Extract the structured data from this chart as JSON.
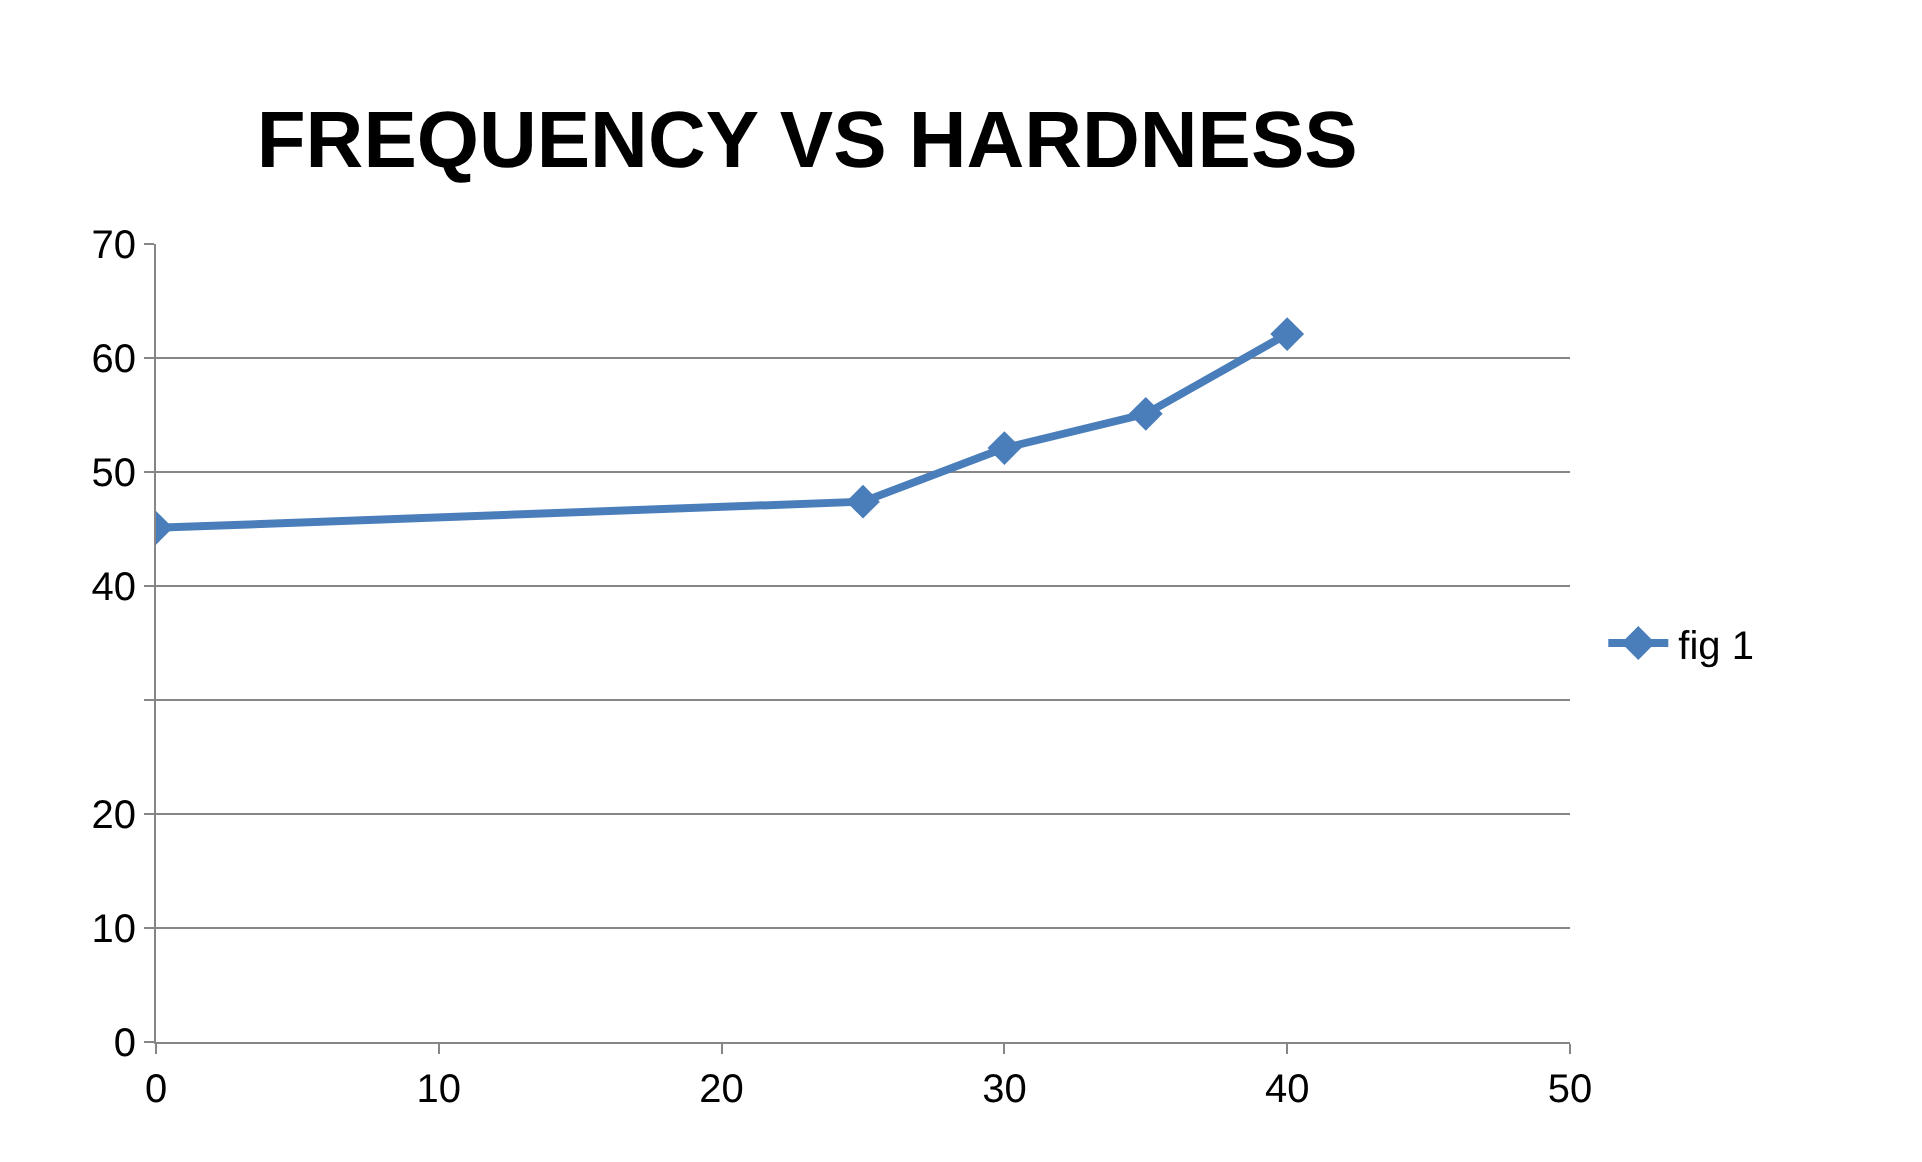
{
  "chart_data": {
    "type": "line",
    "title": "FREQUENCY VS HARDNESS",
    "x": [
      0,
      25,
      30,
      35,
      40
    ],
    "series": [
      {
        "name": "fig 1",
        "color": "#4a7ebb",
        "values": [
          45.1,
          47.4,
          52.1,
          55.1,
          62.1
        ]
      }
    ],
    "xlim": [
      0,
      50
    ],
    "xticks": [
      0,
      10,
      20,
      30,
      40,
      50
    ],
    "ylim": [
      0,
      70
    ],
    "yticks": [
      0,
      10,
      20,
      {
        "value": 30,
        "label": null
      },
      40,
      50,
      60,
      70
    ],
    "grid": "y",
    "legend": "right",
    "marker": "diamond",
    "line_style": "solid"
  }
}
